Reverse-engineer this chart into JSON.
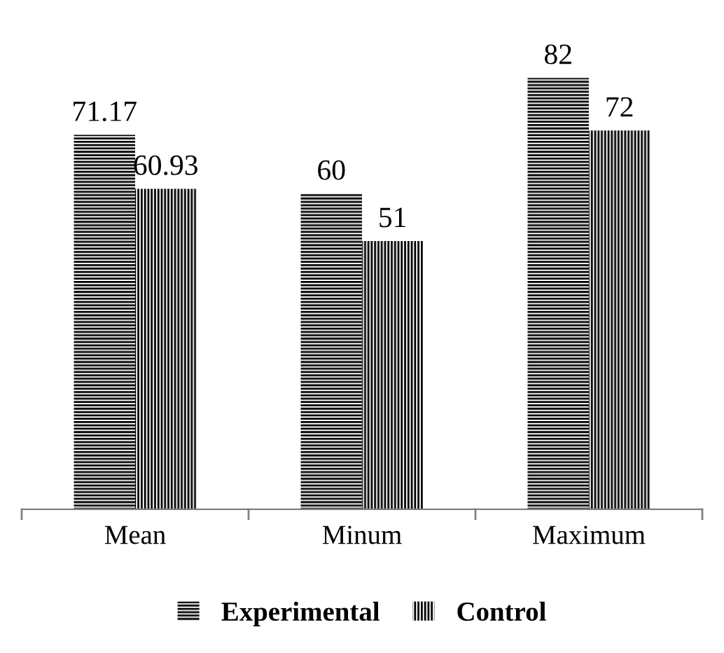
{
  "chart_data": {
    "type": "bar",
    "categories": [
      "Mean",
      "Minum",
      "Maximum"
    ],
    "series": [
      {
        "name": "Experimental",
        "color": "#000000",
        "values": [
          71.17,
          60,
          82
        ]
      },
      {
        "name": "Control",
        "color": "#000000",
        "values": [
          60.93,
          51,
          72
        ]
      }
    ],
    "data_labels": true,
    "legend": "bottom",
    "grid": false
  }
}
